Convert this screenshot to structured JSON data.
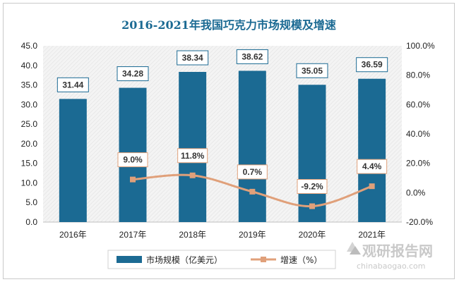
{
  "chart_data": {
    "type": "bar",
    "title": "2016-2021年我国巧克力市场规模及增速",
    "categories": [
      "2016年",
      "2017年",
      "2018年",
      "2019年",
      "2020年",
      "2021年"
    ],
    "series": [
      {
        "name": "市场规模（亿美元）",
        "type": "bar",
        "axis": "left",
        "values": [
          31.44,
          34.28,
          38.34,
          38.62,
          35.05,
          36.59
        ],
        "labels": [
          "31.44",
          "34.28",
          "38.34",
          "38.62",
          "35.05",
          "36.59"
        ],
        "color": "#1b6a93"
      },
      {
        "name": "增速（%）",
        "type": "line",
        "axis": "right",
        "values": [
          null,
          9.0,
          11.8,
          0.7,
          -9.2,
          4.4
        ],
        "labels": [
          "",
          "9.0%",
          "11.8%",
          "0.7%",
          "-9.2%",
          "4.4%"
        ],
        "color": "#e0a07a"
      }
    ],
    "y_left": {
      "min": 0,
      "max": 45,
      "step": 5,
      "ticks": [
        "0.0",
        "5.0",
        "10.0",
        "15.0",
        "20.0",
        "25.0",
        "30.0",
        "35.0",
        "40.0",
        "45.0"
      ]
    },
    "y_right": {
      "min": -20,
      "max": 100,
      "step": 20,
      "ticks": [
        "-20.0%",
        "0.0%",
        "20.0%",
        "40.0%",
        "60.0%",
        "80.0%",
        "100.0%"
      ]
    },
    "legend_position": "bottom",
    "plot_background": "hatched light gray"
  },
  "watermark": {
    "text": "观研报告网",
    "url": "chinabaogao.com"
  }
}
